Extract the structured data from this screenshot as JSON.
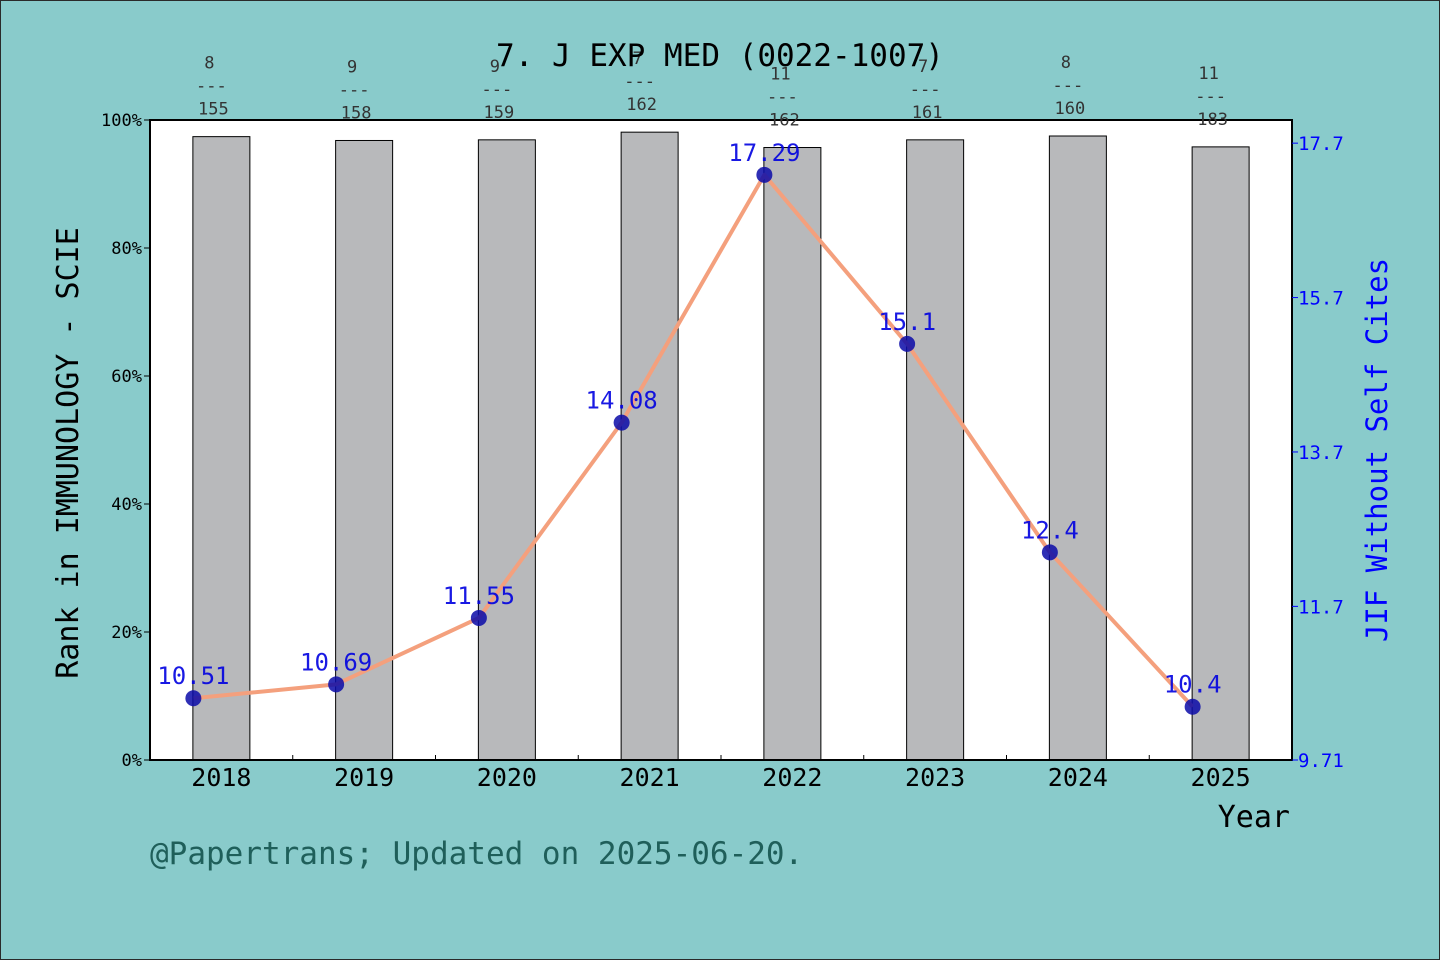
{
  "chart_data": {
    "type": "bar+line",
    "title": "7. J EXP MED (0022-1007)",
    "xlabel": "Year",
    "ylabel_left": "Rank in IMMUNOLOGY - SCIE",
    "ylabel_right": "JIF Without Self Cites",
    "categories": [
      "2018",
      "2019",
      "2020",
      "2021",
      "2022",
      "2023",
      "2024",
      "2025"
    ],
    "left_axis": {
      "ylim": [
        0,
        100
      ],
      "ticks": [
        "0%",
        "20%",
        "40%",
        "60%",
        "80%",
        "100%"
      ]
    },
    "right_axis": {
      "ylim": [
        9.71,
        18.0
      ],
      "ticks": [
        "9.71",
        "11.7",
        "13.7",
        "15.7",
        "17.7"
      ],
      "tick_values": [
        9.71,
        11.7,
        13.7,
        15.7,
        17.7
      ]
    },
    "bars": {
      "values_percent": [
        97.4,
        96.8,
        96.9,
        98.1,
        95.7,
        96.9,
        97.5,
        95.8
      ],
      "rank": [
        "8",
        "9",
        "9",
        "7",
        "11",
        "7",
        "8",
        "11"
      ],
      "total": [
        "155",
        "158",
        "159",
        "162",
        "162",
        "161",
        "160",
        "183"
      ],
      "separator": "---",
      "color": "#b8b9bb"
    },
    "series": [
      {
        "values": [
          10.51,
          10.69,
          11.55,
          14.08,
          17.29,
          15.1,
          12.4,
          10.4
        ],
        "labels": [
          "10.51",
          "10.69",
          "11.55",
          "14.08",
          "17.29",
          "15.1",
          "12.4",
          "10.4"
        ],
        "line_color": "#f4a07d",
        "marker_color": "#0a0aa8",
        "label_color": "#0000e0"
      }
    ],
    "grid": false
  },
  "footer": "@Papertrans; Updated on 2025-06-20."
}
